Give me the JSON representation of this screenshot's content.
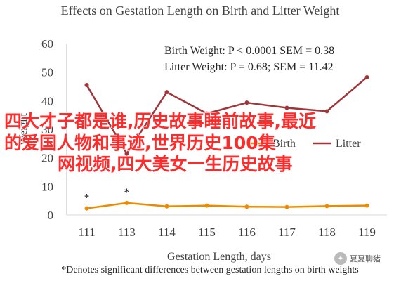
{
  "chart_data": {
    "type": "line",
    "title": "Effects on Gestation Length on Birth and Litter Weight",
    "xlabel": "Gestation Length, days",
    "ylabel": "Weight",
    "categories": [
      "111",
      "113",
      "114",
      "115",
      "116",
      "117",
      "118",
      "119"
    ],
    "ylim": [
      0,
      60
    ],
    "yticks": [
      0,
      10,
      20,
      30,
      40,
      50,
      60
    ],
    "grid": false,
    "legend_position": "center-right",
    "series": [
      {
        "name": "Birth",
        "color": "#ed8b00",
        "values": [
          2.3,
          4.2,
          3.0,
          3.3,
          2.9,
          2.8,
          3.1,
          3.3
        ]
      },
      {
        "name": "Litter",
        "color": "#a0353a",
        "values": [
          45.5,
          21.5,
          43.0,
          35.5,
          39.3,
          37.5,
          36.3,
          48.2
        ]
      }
    ],
    "annotations": [
      {
        "text": "Birth Weight: P < 0.0001 SEM = 0.38"
      },
      {
        "text": "Litter Weight: P = 0.68; SEM = 11.42"
      },
      {
        "text": "*",
        "category": "111",
        "series": "Birth"
      },
      {
        "text": "*",
        "category": "113",
        "series": "Birth"
      }
    ],
    "footnote": "*Denotes significant differences between gestation lengths on birth weights"
  },
  "overlay_text": {
    "line1": "四大才子都是谁,历史故事睡前故事,最近",
    "line2": "的爱国人物和事迹,世界历史100集",
    "line3": "网视频,四大美女一生历史故事",
    "color": "#ff2a2a"
  },
  "watermark": {
    "label": "夏夏聊猪"
  }
}
